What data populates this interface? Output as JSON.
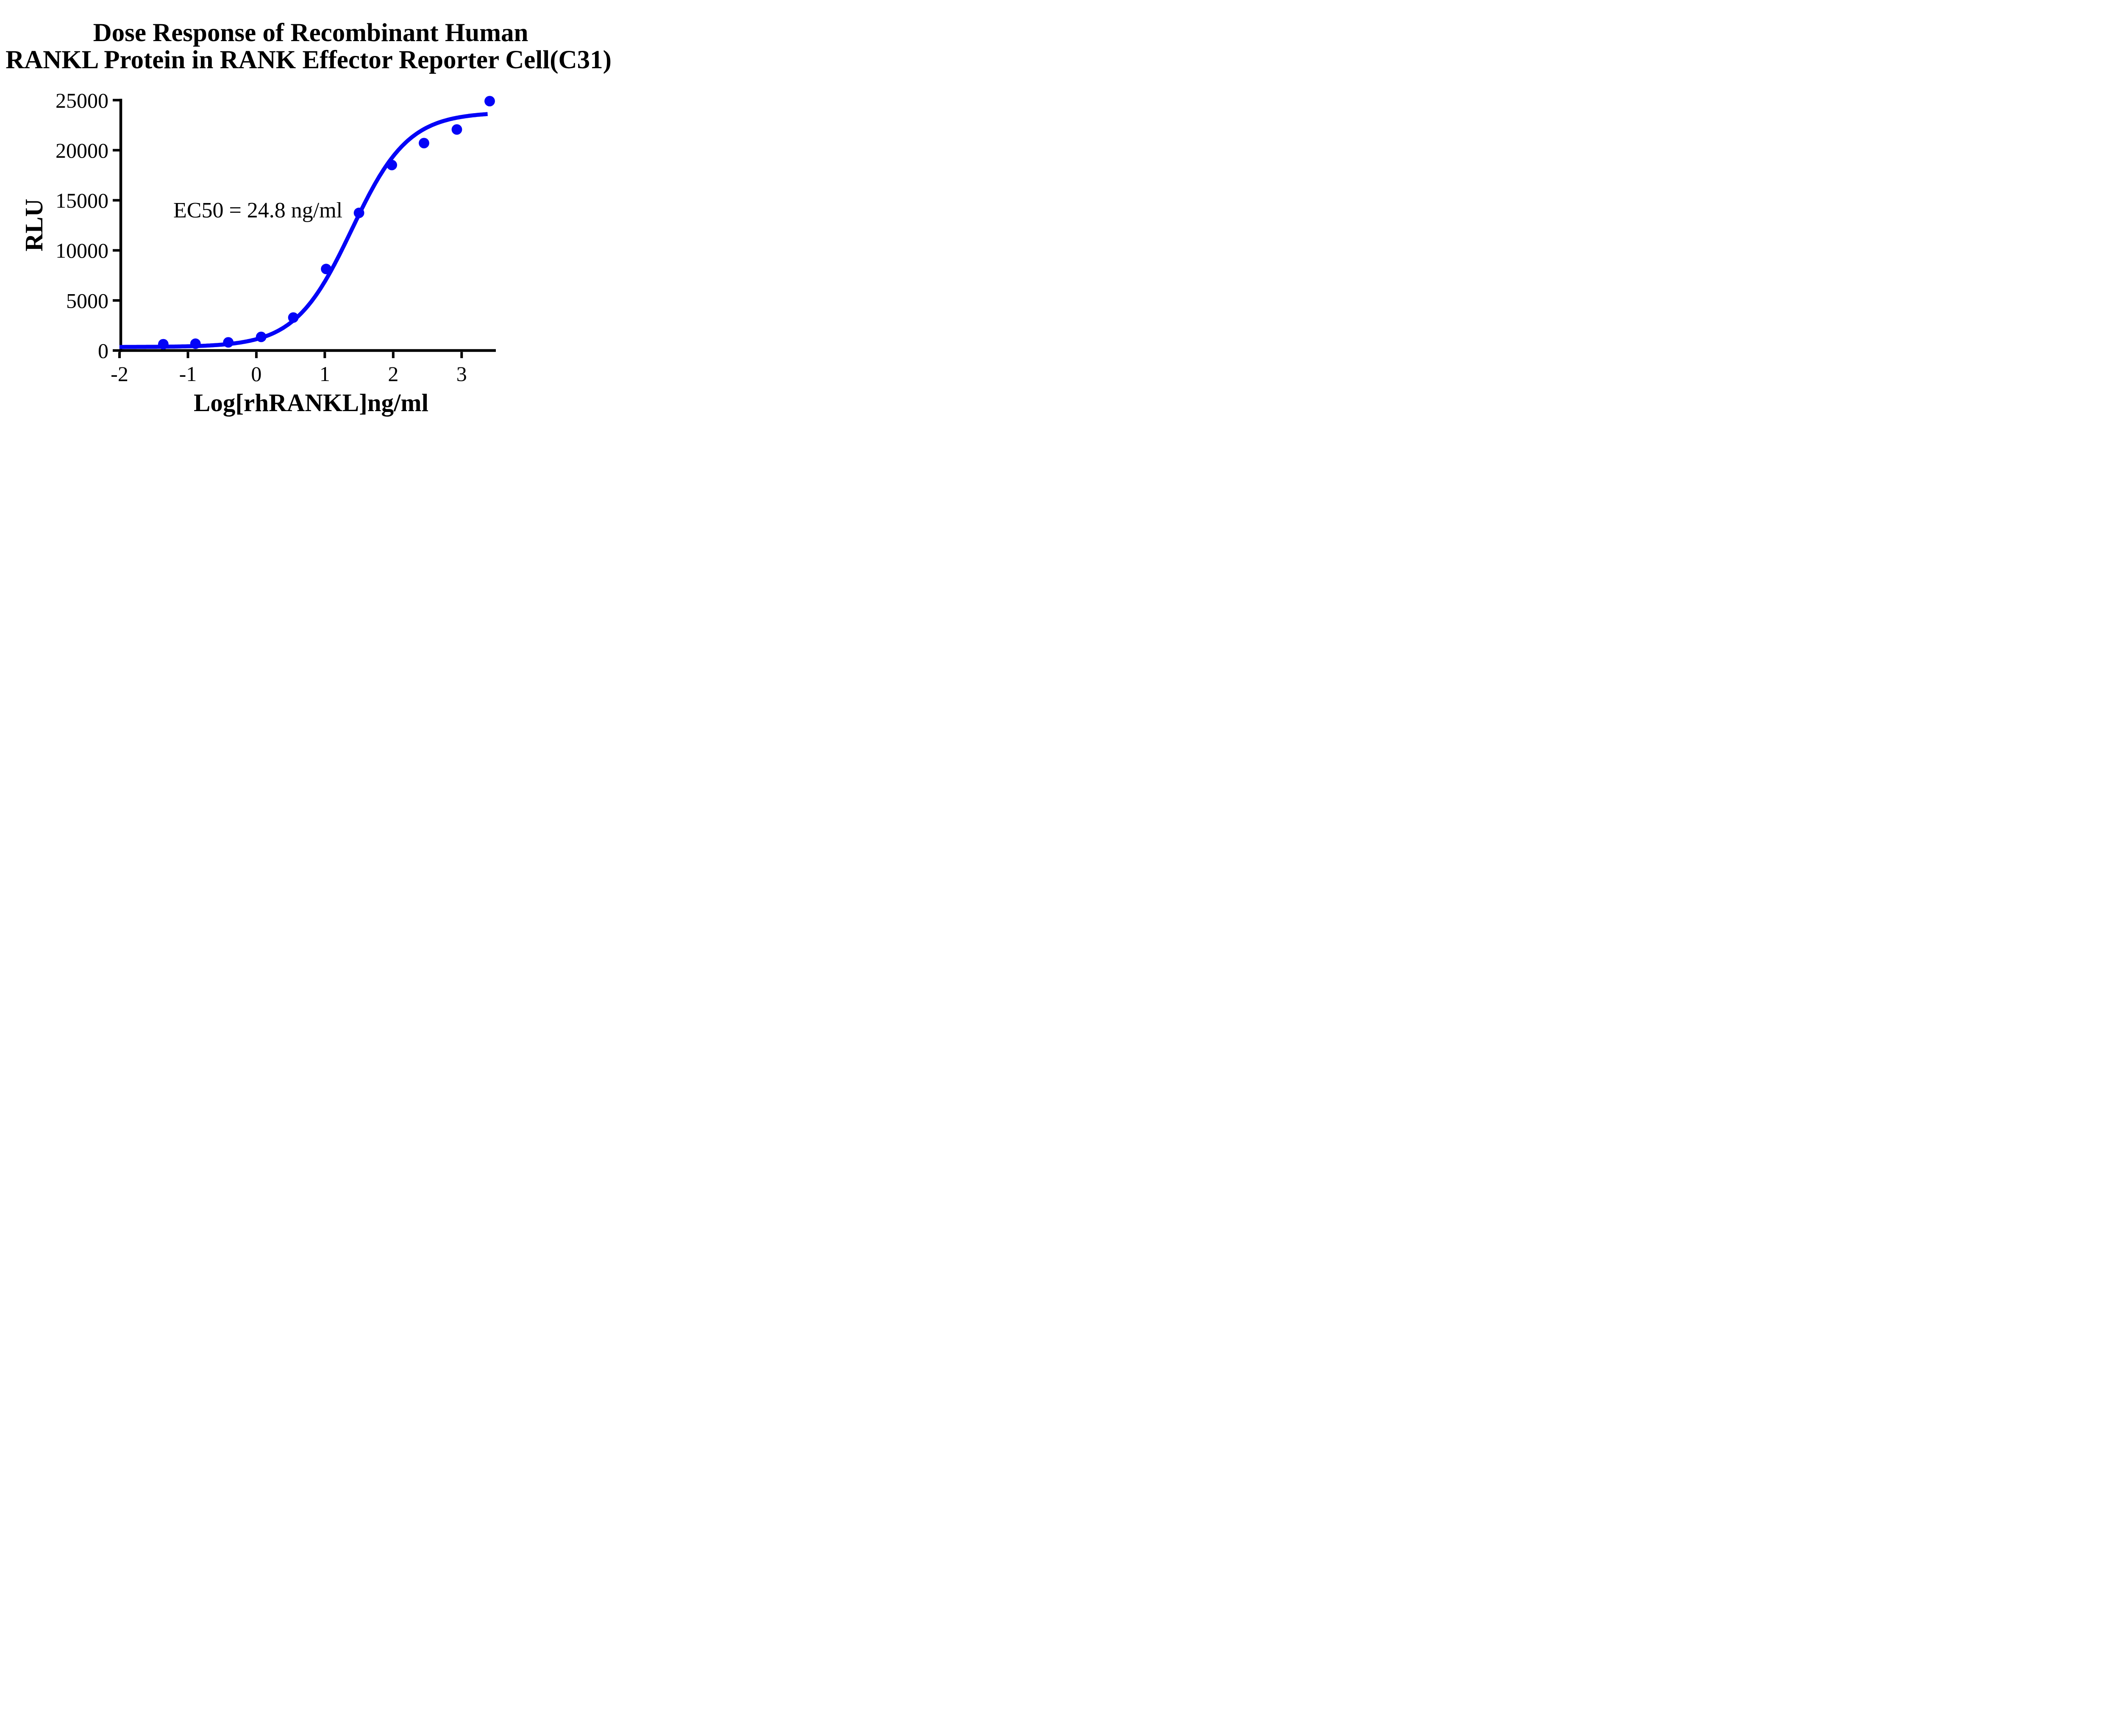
{
  "title": {
    "line1": "Dose Response of Recombinant Human",
    "line2": "RANKL Protein in RANK Effector Reporter Cell(C31)"
  },
  "colors": {
    "series": "#0303F7",
    "axis": "#000000",
    "text": "#000000",
    "background": "#FFFFFF"
  },
  "chart_data": {
    "type": "scatter",
    "title": "Dose Response of Recombinant Human RANKL Protein in RANK Effector Reporter Cell(C31)",
    "xlabel": "Log[rhRANKL]ng/ml",
    "ylabel": "RLU",
    "annotation": "EC50 = 24.8 ng/ml",
    "legend": "none",
    "grid": false,
    "xlim": [
      -2,
      3.5
    ],
    "ylim": [
      0,
      25000
    ],
    "x_ticks": [
      -2,
      -1,
      0,
      1,
      2,
      3
    ],
    "y_ticks": [
      0,
      5000,
      10000,
      15000,
      20000,
      25000
    ],
    "points": {
      "x": [
        -1.36,
        -0.89,
        -0.41,
        0.07,
        0.54,
        1.02,
        1.5,
        1.98,
        2.45,
        2.93,
        3.41
      ],
      "y": [
        630,
        680,
        815,
        1360,
        3290,
        8140,
        13740,
        18520,
        20710,
        22070,
        24900
      ]
    },
    "fit_curve": {
      "model": "four_parameter_logistic",
      "ec50_ng_ml": 24.8,
      "log_ec50": 1.394,
      "hill": 1.05,
      "bottom": 350,
      "top": 23800,
      "x_start": -2,
      "x_end": 3.39
    }
  }
}
